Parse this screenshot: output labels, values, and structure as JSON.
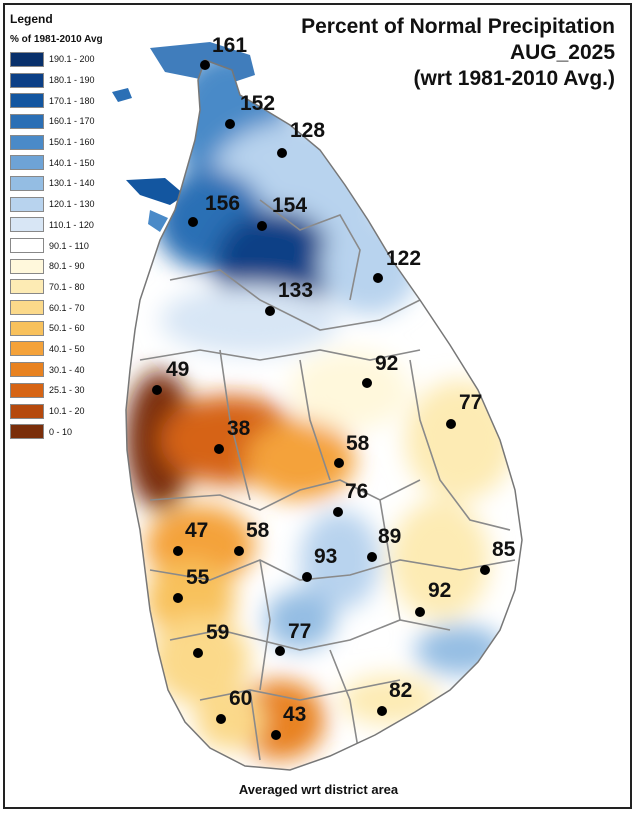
{
  "title": {
    "line1": "Percent of Normal Precipitation",
    "line2": "AUG_2025",
    "line3": "(wrt 1981-2010 Avg.)"
  },
  "legend": {
    "title": "Legend",
    "subtitle": "% of 1981-2010 Avg",
    "items": [
      {
        "label": "190.1 - 200",
        "color": "#08306b"
      },
      {
        "label": "180.1 - 190",
        "color": "#0b3f86"
      },
      {
        "label": "170.1 - 180",
        "color": "#1356a0"
      },
      {
        "label": "160.1 - 170",
        "color": "#2b6fb5"
      },
      {
        "label": "150.1 - 160",
        "color": "#4a8ac8"
      },
      {
        "label": "140.1 - 150",
        "color": "#6ea3d6"
      },
      {
        "label": "130.1 - 140",
        "color": "#94bde3"
      },
      {
        "label": "120.1 - 130",
        "color": "#b8d3ee"
      },
      {
        "label": "110.1 - 120",
        "color": "#d8e6f5"
      },
      {
        "label": "90.1 - 110",
        "color": "#ffffff"
      },
      {
        "label": "80.1 - 90",
        "color": "#fff8dc"
      },
      {
        "label": "70.1 - 80",
        "color": "#fdebb4"
      },
      {
        "label": "60.1 - 70",
        "color": "#fbd98a"
      },
      {
        "label": "50.1 - 60",
        "color": "#f8c15c"
      },
      {
        "label": "40.1 - 50",
        "color": "#f4a23a"
      },
      {
        "label": "30.1 - 40",
        "color": "#e88220"
      },
      {
        "label": "25.1 - 30",
        "color": "#d66414"
      },
      {
        "label": "10.1 - 20",
        "color": "#b5490d"
      },
      {
        "label": "0 - 10",
        "color": "#7a2e0a"
      }
    ]
  },
  "districts": [
    {
      "value": "161"
    },
    {
      "value": "152"
    },
    {
      "value": "128"
    },
    {
      "value": "156"
    },
    {
      "value": "154"
    },
    {
      "value": "122"
    },
    {
      "value": "133"
    },
    {
      "value": "92"
    },
    {
      "value": "49"
    },
    {
      "value": "77"
    },
    {
      "value": "38"
    },
    {
      "value": "58"
    },
    {
      "value": "76"
    },
    {
      "value": "47"
    },
    {
      "value": "58"
    },
    {
      "value": "89"
    },
    {
      "value": "85"
    },
    {
      "value": "93"
    },
    {
      "value": "55"
    },
    {
      "value": "92"
    },
    {
      "value": "59"
    },
    {
      "value": "77"
    },
    {
      "value": "82"
    },
    {
      "value": "60"
    },
    {
      "value": "43"
    }
  ],
  "footnote": "Averaged wrt district area"
}
